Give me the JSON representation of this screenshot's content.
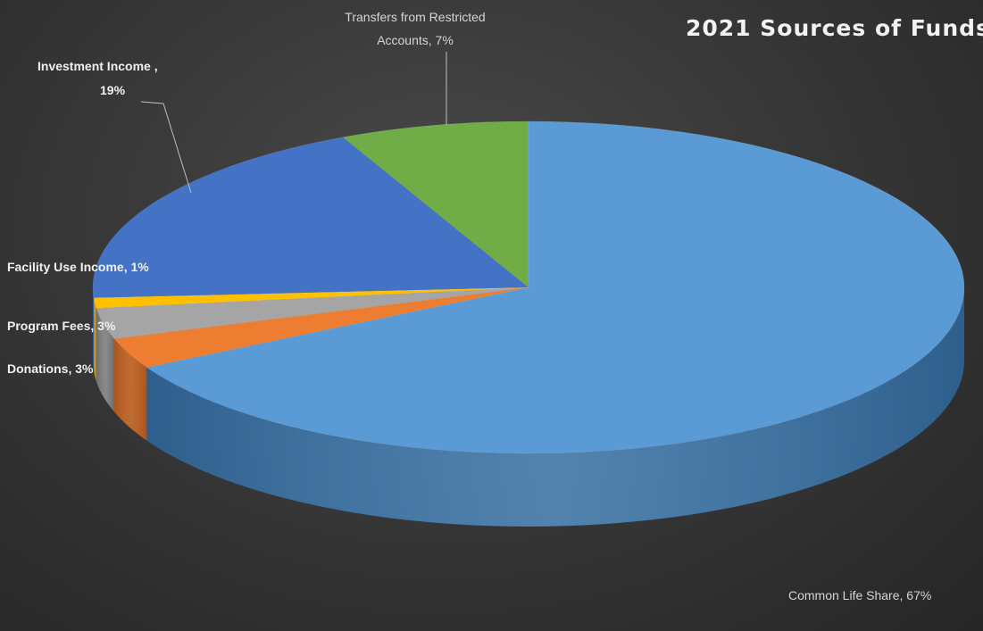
{
  "chart_data": {
    "type": "pie",
    "title": "2021 Sources of Funds",
    "slices": [
      {
        "name": "Common Life Share",
        "value": 67,
        "label_line1": "Common Life Share, 67%",
        "label_line2": "",
        "color": "#5b9bd5",
        "side": "#2e5f8c"
      },
      {
        "name": "Donations",
        "value": 3,
        "label_line1": "Donations, 3%",
        "label_line2": "",
        "color": "#ed7d31",
        "side": "#a9551e"
      },
      {
        "name": "Program Fees",
        "value": 3,
        "label_line1": "Program Fees, 3%",
        "label_line2": "",
        "color": "#a5a5a5",
        "side": "#6e6e6e"
      },
      {
        "name": "Facility Use Income",
        "value": 1,
        "label_line1": "Facility Use Income, 1%",
        "label_line2": "",
        "color": "#ffc000",
        "side": "#b08500"
      },
      {
        "name": "Investment Income",
        "value": 19,
        "label_line1": "Investment Income ,",
        "label_line2": "19%",
        "color": "#4472c4",
        "side": "#2d4f8c"
      },
      {
        "name": "Transfers from Restricted Accounts",
        "value": 7,
        "label_line1": "Transfers from Restricted",
        "label_line2": "Accounts, 7%",
        "color": "#70ad47",
        "side": "#4a7a2c"
      }
    ],
    "legend": "none",
    "data_labels": "outside"
  }
}
